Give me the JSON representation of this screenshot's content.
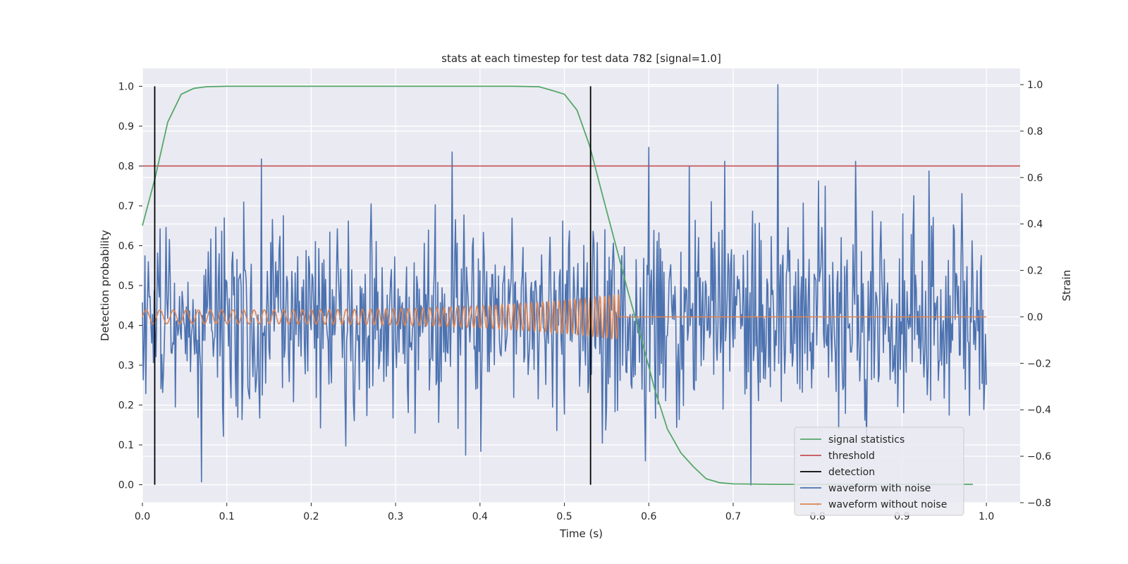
{
  "chart_data": {
    "type": "line",
    "title": "stats at each timestep for test data 782 [signal=1.0]",
    "xlabel": "Time (s)",
    "ylabel_left": "Detection probability",
    "ylabel_right": "Strain",
    "xlim": [
      0.0,
      1.04
    ],
    "ylim_left": [
      -0.045,
      1.045
    ],
    "ylim_right": [
      -0.8,
      1.07
    ],
    "x_ticks": [
      "0.0",
      "0.1",
      "0.2",
      "0.3",
      "0.4",
      "0.5",
      "0.6",
      "0.7",
      "0.8",
      "0.9",
      "1.0"
    ],
    "y_ticks_left": [
      "0.0",
      "0.1",
      "0.2",
      "0.3",
      "0.4",
      "0.5",
      "0.6",
      "0.7",
      "0.8",
      "0.9",
      "1.0"
    ],
    "y_ticks_right": [
      "−0.8",
      "−0.6",
      "−0.4",
      "−0.2",
      "0.0",
      "0.2",
      "0.4",
      "0.6",
      "0.8",
      "1.0"
    ],
    "grid": true,
    "legend_position": "lower-right",
    "colors": {
      "signal_statistics": "#55a868",
      "threshold": "#c44e52",
      "detection": "#000000",
      "waveform_with_noise": "#4c72b0",
      "waveform_without_noise": "#dd8452",
      "background": "#eaeaf2"
    },
    "series": [
      {
        "name": "signal statistics",
        "axis": "left",
        "x": [
          0.0,
          0.015,
          0.03,
          0.046,
          0.061,
          0.076,
          0.1,
          0.2,
          0.3,
          0.4,
          0.44,
          0.47,
          0.485,
          0.5,
          0.515,
          0.53,
          0.546,
          0.561,
          0.576,
          0.592,
          0.607,
          0.622,
          0.638,
          0.653,
          0.668,
          0.684,
          0.7,
          0.75,
          0.8,
          0.9,
          0.984
        ],
        "values": [
          0.65,
          0.77,
          0.91,
          0.98,
          0.995,
          0.999,
          1.0,
          1.0,
          1.0,
          1.0,
          1.0,
          0.999,
          0.99,
          0.98,
          0.94,
          0.85,
          0.72,
          0.6,
          0.48,
          0.36,
          0.24,
          0.14,
          0.08,
          0.045,
          0.015,
          0.005,
          0.002,
          0.001,
          0.001,
          0.001,
          0.001
        ]
      },
      {
        "name": "threshold",
        "axis": "left",
        "x": [
          0.0,
          1.04
        ],
        "values": [
          0.8,
          0.8
        ]
      },
      {
        "name": "detection",
        "axis": "left",
        "x": [
          0.0146,
          0.531
        ],
        "values": [
          1.0,
          1.0
        ],
        "style": "vertical lines from 0.0 to 1.0"
      },
      {
        "name": "waveform with noise",
        "axis": "right",
        "x_range": [
          0.0,
          1.0
        ],
        "approx_range": [
          -0.73,
          1.0
        ],
        "peaks": [
          {
            "x": 0.07,
            "y": -0.71
          },
          {
            "x": 0.367,
            "y": 0.71
          },
          {
            "x": 0.6,
            "y": 0.73
          },
          {
            "x": 0.596,
            "y": -0.62
          },
          {
            "x": 0.69,
            "y": 0.67
          },
          {
            "x": 0.753,
            "y": 1.0
          },
          {
            "x": 0.845,
            "y": 0.67
          }
        ]
      },
      {
        "name": "waveform without noise",
        "axis": "right",
        "x_range": [
          0.0,
          1.0
        ],
        "chirp_end": 0.565,
        "approx_amplitude": [
          0.03,
          0.1
        ]
      }
    ],
    "legend": [
      "signal statistics",
      "threshold",
      "detection",
      "waveform with noise",
      "waveform without noise"
    ]
  }
}
